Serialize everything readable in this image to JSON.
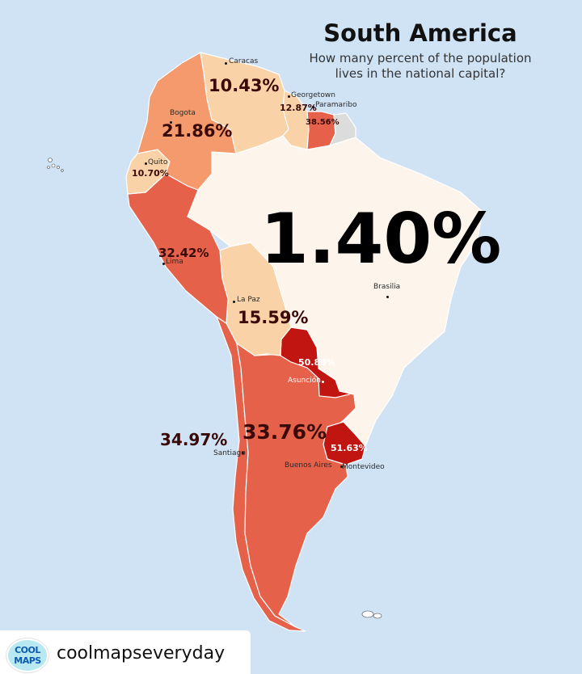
{
  "title": "South America",
  "subtitle_line1": "How many percent of the population",
  "subtitle_line2": "lives in the national capital?",
  "colors": {
    "sea": "#cfe3f5",
    "very_low": "#fdf5ec",
    "low": "#f9d3a7",
    "mid": "#f49a6c",
    "high": "#e5614a",
    "very_high": "#c01510",
    "no_data": "#dcdcdc",
    "border": "#ffffff"
  },
  "countries": [
    {
      "id": "venezuela",
      "capital": "Caracas",
      "percent": "10.43%"
    },
    {
      "id": "guyana",
      "capital": "Georgetown",
      "percent": "12.87%"
    },
    {
      "id": "suriname",
      "capital": "Paramaribo",
      "percent": "38.56%"
    },
    {
      "id": "colombia",
      "capital": "Bogota",
      "percent": "21.86%"
    },
    {
      "id": "ecuador",
      "capital": "Quito",
      "percent": "10.70%"
    },
    {
      "id": "peru",
      "capital": "Lima",
      "percent": "32.42%"
    },
    {
      "id": "brazil",
      "capital": "Brasilia",
      "percent": "1.40%"
    },
    {
      "id": "bolivia",
      "capital": "La Paz",
      "percent": "15.59%"
    },
    {
      "id": "paraguay",
      "capital": "Asunción",
      "percent": "50.88%"
    },
    {
      "id": "chile",
      "capital": "Santiago",
      "percent": "34.97%"
    },
    {
      "id": "argentina",
      "capital": "Buenos Aires",
      "percent": "33.76%"
    },
    {
      "id": "uruguay",
      "capital": "Montevideo",
      "percent": "51.63%"
    }
  ],
  "footer": {
    "logo_line1": "COOL",
    "logo_line2": "MAPS",
    "handle": "coolmapseveryday"
  }
}
